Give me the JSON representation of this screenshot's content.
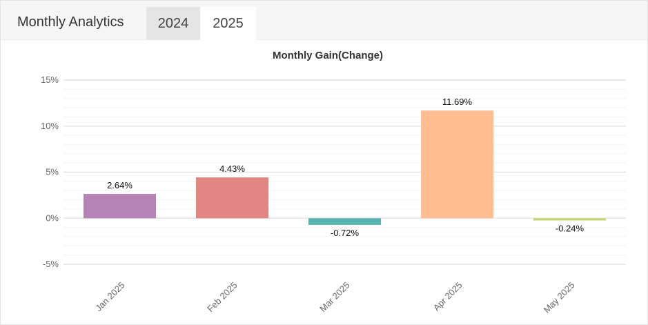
{
  "header": {
    "title": "Monthly Analytics",
    "tabs": [
      {
        "label": "2024",
        "active": false
      },
      {
        "label": "2025",
        "active": true
      }
    ]
  },
  "chart_data": {
    "type": "bar",
    "title": "Monthly Gain(Change)",
    "xlabel": "",
    "ylabel": "",
    "categories": [
      "Jan 2025",
      "Feb 2025",
      "Mar 2025",
      "Apr 2025",
      "May 2025"
    ],
    "values": [
      2.64,
      4.43,
      -0.72,
      11.69,
      -0.24
    ],
    "data_labels": [
      "2.64%",
      "4.43%",
      "-0.72%",
      "11.69%",
      "-0.24%"
    ],
    "colors": [
      "#b583b5",
      "#e28683",
      "#57b2b0",
      "#ffbd91",
      "#c4d670"
    ],
    "ylim": [
      -5,
      15
    ],
    "yticks": [
      15,
      10,
      5,
      0,
      -5
    ],
    "ytick_labels": [
      "15%",
      "10%",
      "5%",
      "0%",
      "-5%"
    ],
    "grid": true,
    "legend": "none"
  }
}
